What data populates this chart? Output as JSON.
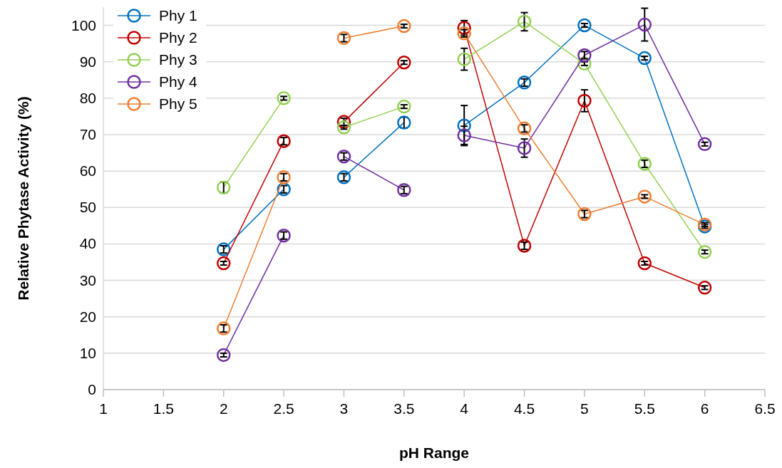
{
  "chart_data": {
    "type": "line",
    "xlabel": "pH Range",
    "ylabel": "Relative Phytase Activity (%)",
    "xlim": [
      1,
      6.5
    ],
    "xticks": [
      1,
      1.5,
      2,
      2.5,
      3,
      3.5,
      4,
      4.5,
      5,
      5.5,
      6,
      6.5
    ],
    "ylim": [
      0,
      105
    ],
    "yticks": [
      0,
      10,
      20,
      30,
      40,
      50,
      60,
      70,
      80,
      90,
      100
    ],
    "grid": "y",
    "legend": "top left",
    "marker": "circle",
    "line_style": "solid",
    "x": [
      2,
      2.5,
      2.75,
      3,
      3.5,
      3.75,
      4,
      4.5,
      5,
      5.5,
      6
    ],
    "series": [
      {
        "name": "Phy 1",
        "color": "#0070c0",
        "values": [
          38.5,
          55,
          null,
          58.3,
          73.3,
          null,
          72.5,
          84.3,
          100,
          91,
          44.8
        ],
        "errors": [
          1,
          1,
          null,
          1,
          1.5,
          null,
          5.5,
          1,
          0.5,
          0.5,
          0.5
        ]
      },
      {
        "name": "Phy 2",
        "color": "#c00000",
        "values": [
          34.7,
          68.2,
          null,
          73.5,
          89.8,
          null,
          99.3,
          39.5,
          79.3,
          34.7,
          28
        ],
        "errors": [
          0.5,
          1,
          null,
          1,
          0.5,
          null,
          2,
          1,
          3,
          0.5,
          0.5
        ]
      },
      {
        "name": "Phy 3",
        "color": "#92d050",
        "values": [
          55.5,
          80,
          null,
          72,
          77.7,
          null,
          90.7,
          101,
          89.5,
          62,
          37.8
        ],
        "errors": [
          1.5,
          0.5,
          null,
          0.5,
          0.5,
          null,
          3,
          2.5,
          0.5,
          1,
          0.5
        ]
      },
      {
        "name": "Phy 4",
        "color": "#7030a0",
        "values": [
          9.5,
          42.3,
          null,
          64,
          54.8,
          null,
          69.8,
          66.3,
          91.8,
          100.2,
          67.4
        ],
        "errors": [
          0.5,
          1,
          null,
          1,
          1,
          null,
          2.5,
          2.5,
          1,
          4.5,
          0.5
        ]
      },
      {
        "name": "Phy 5",
        "color": "#ed7d31",
        "values": [
          16.8,
          58.3,
          null,
          96.5,
          99.8,
          null,
          97.8,
          71.7,
          48.2,
          53,
          45.3
        ],
        "errors": [
          1,
          1,
          null,
          1,
          0.5,
          null,
          1,
          1,
          1,
          0.5,
          0.5
        ]
      }
    ]
  }
}
